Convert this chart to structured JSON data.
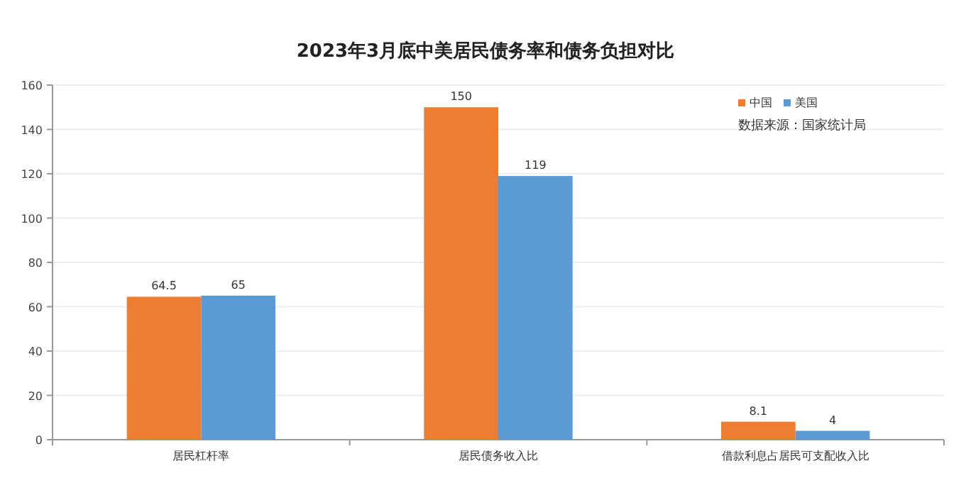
{
  "chart_data": {
    "type": "bar",
    "title": "2023年3月底中美居民债务率和债务负担对比",
    "categories": [
      "居民杠杆率",
      "居民债务收入比",
      "借款利息占居民可支配收入比"
    ],
    "series": [
      {
        "name": "中国",
        "color": "#ed7d31",
        "values": [
          64.5,
          150,
          8.1
        ]
      },
      {
        "name": "美国",
        "color": "#5b9bd5",
        "values": [
          65,
          119,
          4
        ]
      }
    ],
    "ylim": [
      0,
      160
    ],
    "yticks": [
      0,
      20,
      40,
      60,
      80,
      100,
      120,
      140,
      160
    ],
    "grid": "y",
    "legend": "top right",
    "data_labels": true,
    "annotations": [
      "数据来源：国家统计局"
    ]
  }
}
